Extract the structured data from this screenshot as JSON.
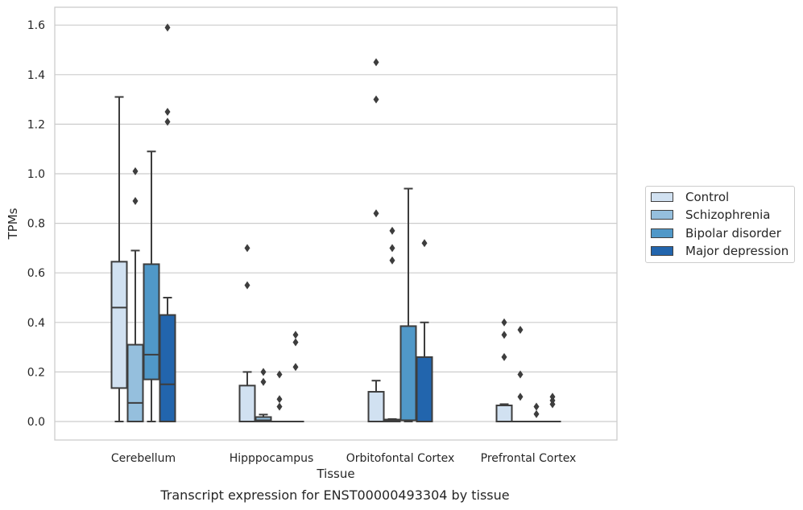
{
  "chart_data": {
    "type": "box",
    "title": "",
    "caption": "Transcript expression for ENST00000493304 by tissue",
    "xlabel": "Tissue",
    "ylabel": "TPMs",
    "ylim": [
      -0.08,
      1.67
    ],
    "yticks": [
      "0.0",
      "0.2",
      "0.4",
      "0.6",
      "0.8",
      "1.0",
      "1.2",
      "1.4",
      "1.6"
    ],
    "ytick_values": [
      0.0,
      0.2,
      0.4,
      0.6,
      0.8,
      1.0,
      1.2,
      1.4,
      1.6
    ],
    "grid": "horizontal",
    "legend_position": "right",
    "categories": [
      "Cerebellum",
      "Hipppocampus",
      "Orbitofontal Cortex",
      "Prefrontal Cortex"
    ],
    "series": [
      {
        "name": "Control",
        "color": "#d1e1f1",
        "boxes": [
          {
            "q1": 0.135,
            "median": 0.46,
            "q3": 0.645,
            "whisker_low": 0.0,
            "whisker_high": 1.31,
            "outliers": []
          },
          {
            "q1": 0.0,
            "median": 0.0,
            "q3": 0.145,
            "whisker_low": 0.0,
            "whisker_high": 0.2,
            "outliers": [
              0.55,
              0.7
            ]
          },
          {
            "q1": 0.0,
            "median": 0.0,
            "q3": 0.12,
            "whisker_low": 0.0,
            "whisker_high": 0.165,
            "outliers": [
              0.84,
              1.3,
              1.45
            ]
          },
          {
            "q1": 0.0,
            "median": 0.0,
            "q3": 0.065,
            "whisker_low": 0.0,
            "whisker_high": 0.07,
            "outliers": [
              0.26,
              0.35,
              0.4
            ]
          }
        ]
      },
      {
        "name": "Schizophrenia",
        "color": "#95bfdd",
        "boxes": [
          {
            "q1": 0.0,
            "median": 0.075,
            "q3": 0.31,
            "whisker_low": 0.0,
            "whisker_high": 0.69,
            "outliers": [
              0.89,
              1.01
            ]
          },
          {
            "q1": 0.0,
            "median": 0.005,
            "q3": 0.018,
            "whisker_low": 0.0,
            "whisker_high": 0.028,
            "outliers": [
              0.16,
              0.2
            ]
          },
          {
            "q1": 0.0,
            "median": 0.004,
            "q3": 0.008,
            "whisker_low": 0.0,
            "whisker_high": 0.01,
            "outliers": [
              0.65,
              0.7,
              0.77
            ]
          },
          {
            "q1": 0.0,
            "median": 0.0,
            "q3": 0.0,
            "whisker_low": 0.0,
            "whisker_high": 0.0,
            "outliers": [
              0.1,
              0.19,
              0.37
            ]
          }
        ]
      },
      {
        "name": "Bipolar disorder",
        "color": "#5098c8",
        "boxes": [
          {
            "q1": 0.17,
            "median": 0.27,
            "q3": 0.635,
            "whisker_low": 0.0,
            "whisker_high": 1.09,
            "outliers": []
          },
          {
            "q1": 0.0,
            "median": 0.0,
            "q3": 0.0,
            "whisker_low": 0.0,
            "whisker_high": 0.0,
            "outliers": [
              0.06,
              0.09,
              0.19
            ]
          },
          {
            "q1": 0.005,
            "median": 0.005,
            "q3": 0.385,
            "whisker_low": 0.0,
            "whisker_high": 0.94,
            "outliers": []
          },
          {
            "q1": 0.0,
            "median": 0.0,
            "q3": 0.0,
            "whisker_low": 0.0,
            "whisker_high": 0.0,
            "outliers": [
              0.03,
              0.06
            ]
          }
        ]
      },
      {
        "name": "Major depression",
        "color": "#2265ad",
        "boxes": [
          {
            "q1": 0.0,
            "median": 0.15,
            "q3": 0.43,
            "whisker_low": 0.0,
            "whisker_high": 0.5,
            "outliers": [
              1.21,
              1.25,
              1.59
            ]
          },
          {
            "q1": 0.0,
            "median": 0.0,
            "q3": 0.0,
            "whisker_low": 0.0,
            "whisker_high": 0.0,
            "outliers": [
              0.22,
              0.32,
              0.35
            ]
          },
          {
            "q1": 0.0,
            "median": 0.0,
            "q3": 0.26,
            "whisker_low": 0.0,
            "whisker_high": 0.4,
            "outliers": [
              0.72
            ]
          },
          {
            "q1": 0.0,
            "median": 0.0,
            "q3": 0.0,
            "whisker_low": 0.0,
            "whisker_high": 0.0,
            "outliers": [
              0.07,
              0.085,
              0.1
            ]
          }
        ]
      }
    ]
  }
}
